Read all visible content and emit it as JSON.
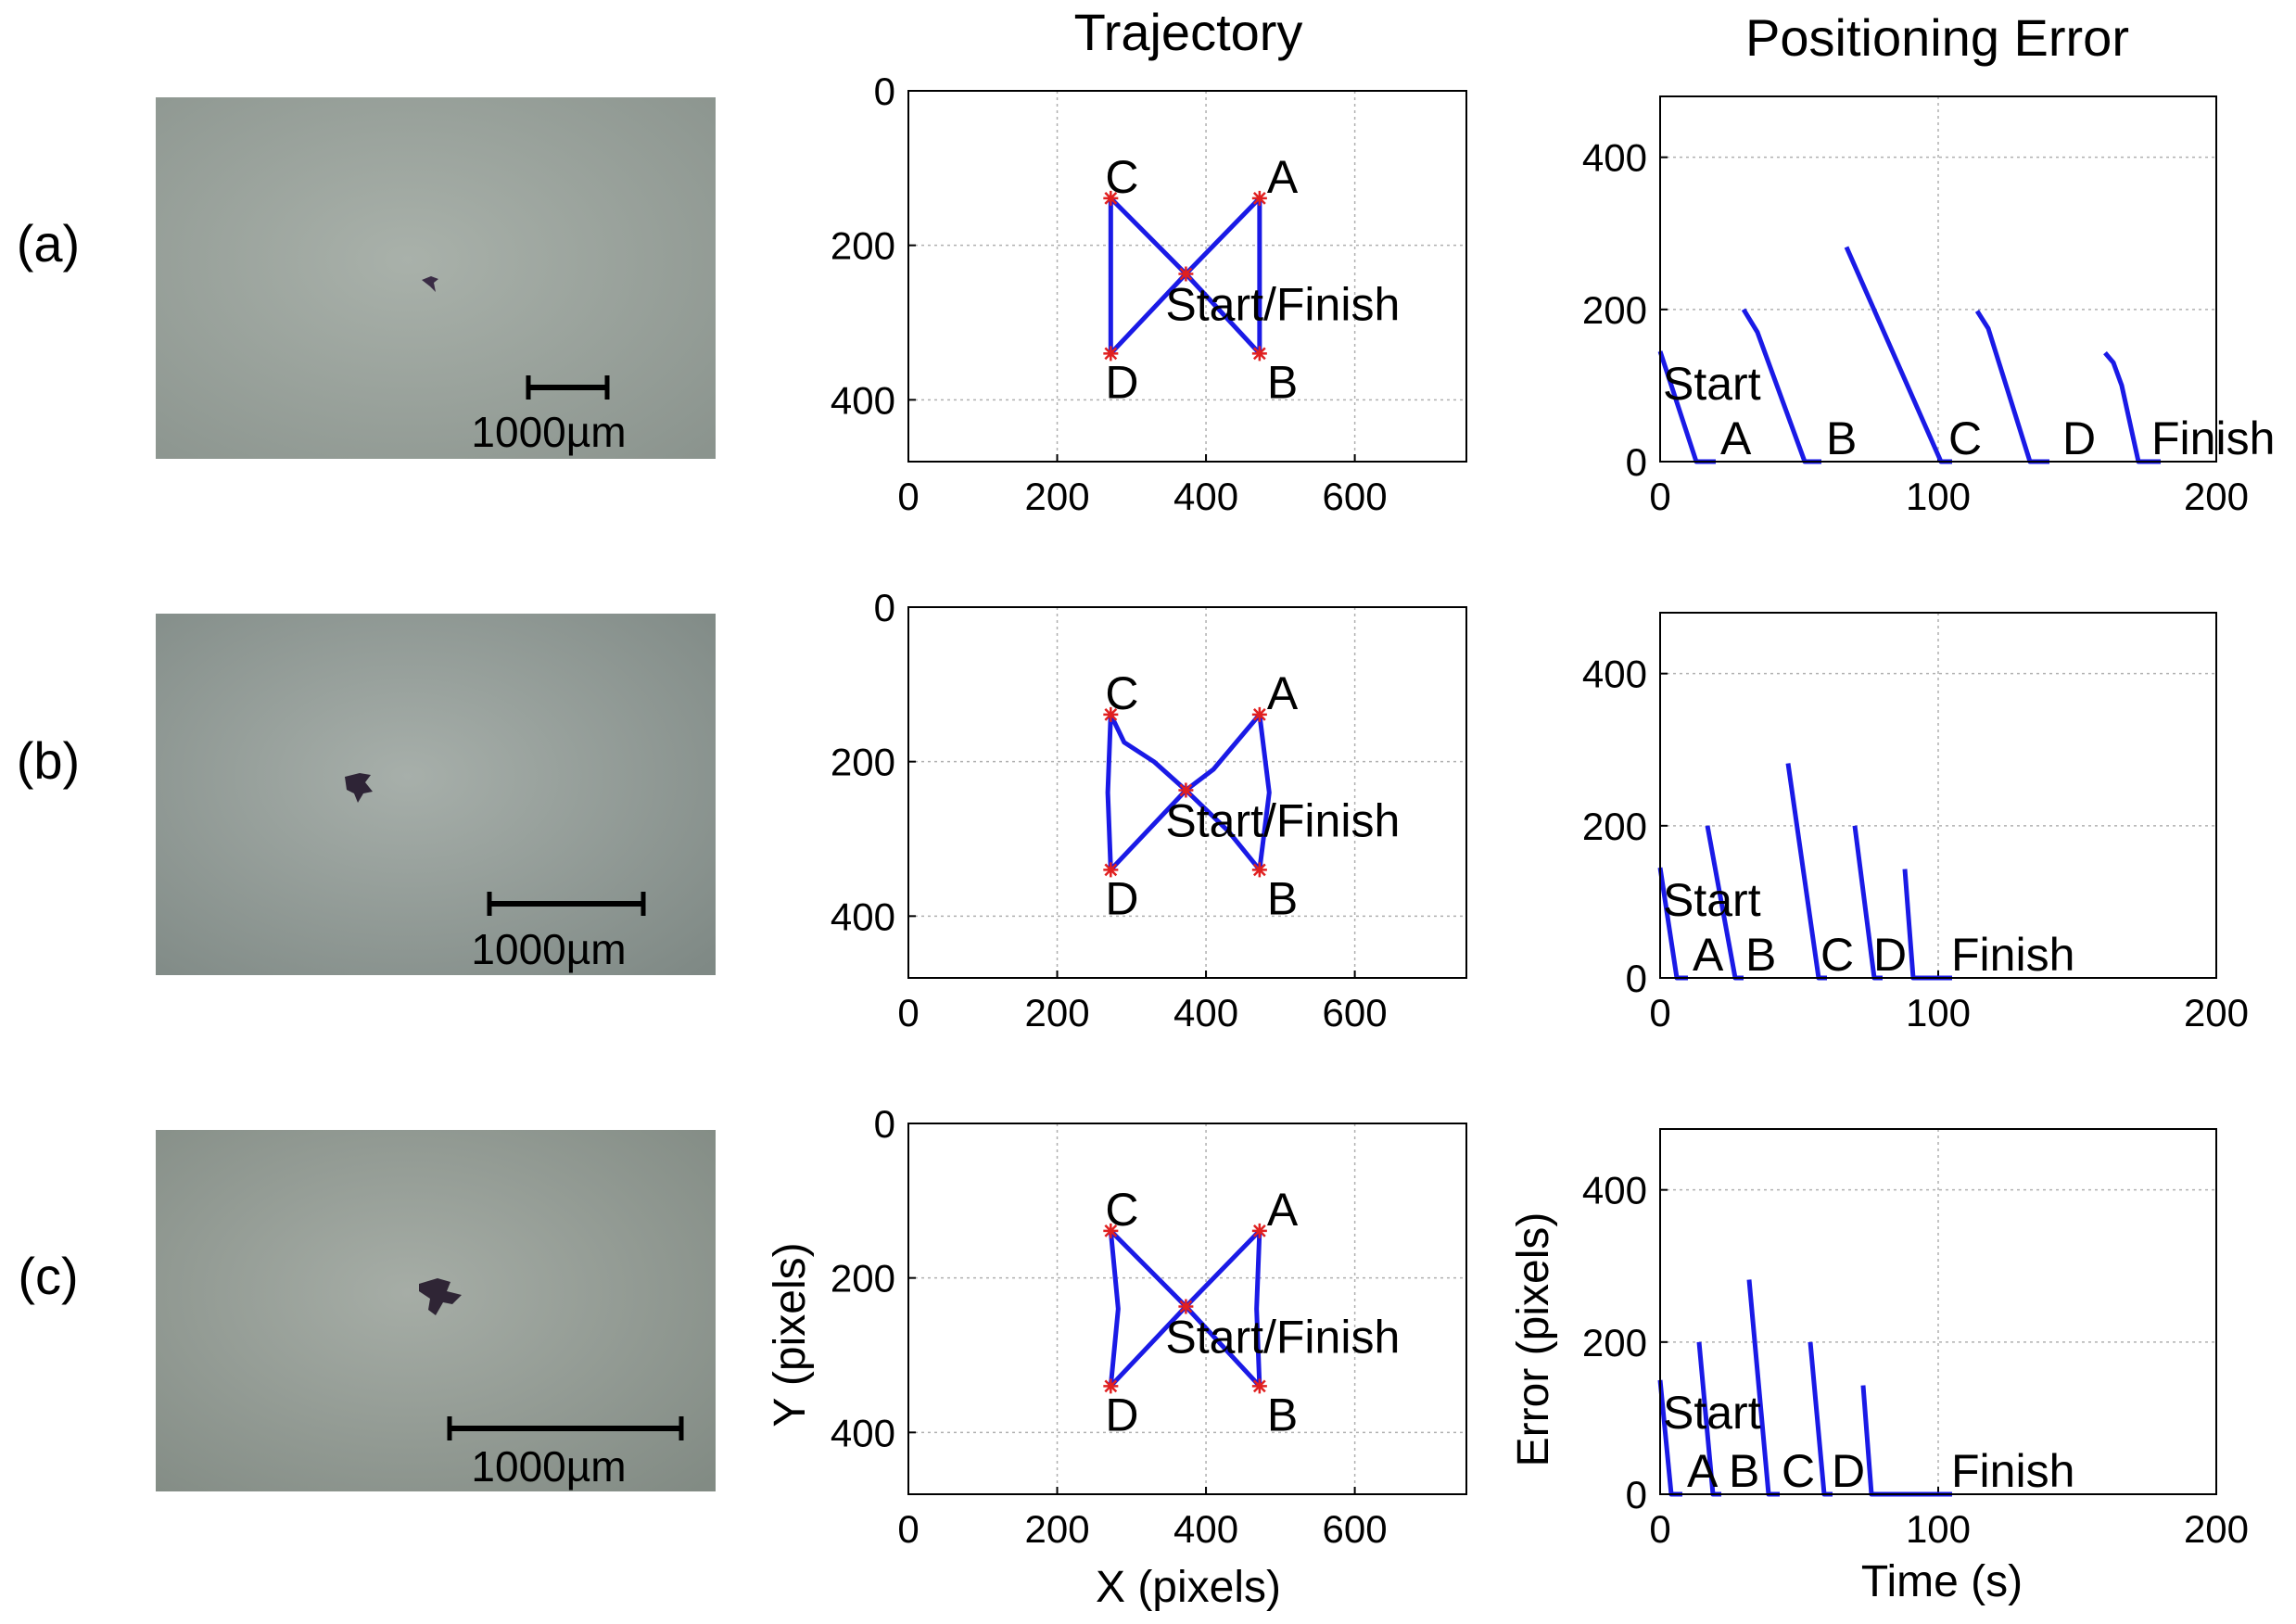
{
  "columns": {
    "trajectory_title": "Trajectory",
    "error_title": "Positioning Error"
  },
  "axis_labels": {
    "traj_x": "X (pixels)",
    "traj_y": "Y (pixels)",
    "err_x": "Time (s)",
    "err_y": "Error (pixels)"
  },
  "rows": [
    {
      "label": "(a)",
      "scale_text": "1000µm",
      "scale_fraction": 0.14
    },
    {
      "label": "(b)",
      "scale_text": "1000µm",
      "scale_fraction": 0.27
    },
    {
      "label": "(c)",
      "scale_text": "1000µm",
      "scale_fraction": 0.4
    }
  ],
  "colors": {
    "trace": "#1a1ae6",
    "waypoint": "#e02020",
    "grid": "#b0b0b0"
  },
  "chart_data": [
    {
      "type": "line",
      "panel": "a-trajectory",
      "xlim": [
        0,
        750
      ],
      "ylim": [
        480,
        0
      ],
      "xticks": [
        "0",
        "200",
        "400",
        "600"
      ],
      "yticks": [
        "0",
        "200",
        "400"
      ],
      "waypoints": {
        "S": [
          373,
          237
        ],
        "A": [
          472,
          139
        ],
        "B": [
          472,
          340
        ],
        "C": [
          272,
          139
        ],
        "D": [
          272,
          340
        ]
      },
      "labels": {
        "A": "A",
        "B": "B",
        "C": "C",
        "D": "D",
        "S": "Start/Finish"
      },
      "path": [
        [
          373,
          237
        ],
        [
          472,
          139
        ],
        [
          472,
          340
        ],
        [
          373,
          237
        ],
        [
          272,
          139
        ],
        [
          272,
          340
        ],
        [
          373,
          237
        ]
      ]
    },
    {
      "type": "line",
      "panel": "b-trajectory",
      "xlim": [
        0,
        750
      ],
      "ylim": [
        480,
        0
      ],
      "xticks": [
        "0",
        "200",
        "400",
        "600"
      ],
      "yticks": [
        "0",
        "200",
        "400"
      ],
      "waypoints": {
        "S": [
          373,
          237
        ],
        "A": [
          472,
          139
        ],
        "B": [
          472,
          340
        ],
        "C": [
          272,
          139
        ],
        "D": [
          272,
          340
        ]
      },
      "labels": {
        "A": "A",
        "B": "B",
        "C": "C",
        "D": "D",
        "S": "Start/Finish"
      },
      "path": [
        [
          373,
          237
        ],
        [
          410,
          210
        ],
        [
          472,
          139
        ],
        [
          485,
          240
        ],
        [
          472,
          340
        ],
        [
          430,
          290
        ],
        [
          373,
          237
        ],
        [
          330,
          200
        ],
        [
          290,
          175
        ],
        [
          272,
          139
        ],
        [
          268,
          240
        ],
        [
          272,
          340
        ],
        [
          373,
          237
        ]
      ]
    },
    {
      "type": "line",
      "panel": "c-trajectory",
      "xlim": [
        0,
        750
      ],
      "ylim": [
        480,
        0
      ],
      "xticks": [
        "0",
        "200",
        "400",
        "600"
      ],
      "yticks": [
        "0",
        "200",
        "400"
      ],
      "waypoints": {
        "S": [
          373,
          237
        ],
        "A": [
          472,
          139
        ],
        "B": [
          472,
          340
        ],
        "C": [
          272,
          139
        ],
        "D": [
          272,
          340
        ]
      },
      "labels": {
        "A": "A",
        "B": "B",
        "C": "C",
        "D": "D",
        "S": "Start/Finish"
      },
      "path": [
        [
          373,
          237
        ],
        [
          472,
          139
        ],
        [
          468,
          240
        ],
        [
          472,
          340
        ],
        [
          373,
          237
        ],
        [
          272,
          139
        ],
        [
          282,
          240
        ],
        [
          272,
          340
        ],
        [
          373,
          237
        ]
      ]
    },
    {
      "type": "line",
      "panel": "a-error",
      "xlim": [
        0,
        200
      ],
      "ylim": [
        0,
        480
      ],
      "xticks": [
        "0",
        "100",
        "200"
      ],
      "yticks": [
        "0",
        "200",
        "400"
      ],
      "segments": [
        [
          [
            0,
            145
          ],
          [
            13,
            0
          ],
          [
            20,
            0
          ]
        ],
        [
          [
            30,
            200
          ],
          [
            35,
            170
          ],
          [
            52,
            0
          ],
          [
            58,
            0
          ]
        ],
        [
          [
            67,
            282
          ],
          [
            101,
            0
          ],
          [
            105,
            0
          ]
        ],
        [
          [
            114,
            198
          ],
          [
            118,
            175
          ],
          [
            133,
            0
          ],
          [
            140,
            0
          ]
        ],
        [
          [
            160,
            143
          ],
          [
            163,
            130
          ],
          [
            166,
            100
          ],
          [
            172,
            0
          ],
          [
            180,
            0
          ]
        ]
      ],
      "annotations": [
        {
          "text": "Start",
          "x": 1,
          "y": 145
        },
        {
          "text": "A",
          "x": 21,
          "y": 0
        },
        {
          "text": "B",
          "x": 59,
          "y": 0
        },
        {
          "text": "C",
          "x": 103,
          "y": 0
        },
        {
          "text": "D",
          "x": 144,
          "y": 0
        },
        {
          "text": "Finish",
          "x": 176,
          "y": 0
        }
      ]
    },
    {
      "type": "line",
      "panel": "b-error",
      "xlim": [
        0,
        200
      ],
      "ylim": [
        0,
        480
      ],
      "xticks": [
        "0",
        "100",
        "200"
      ],
      "yticks": [
        "0",
        "200",
        "400"
      ],
      "segments": [
        [
          [
            0,
            145
          ],
          [
            6,
            0
          ],
          [
            10,
            0
          ]
        ],
        [
          [
            17,
            200
          ],
          [
            27,
            0
          ],
          [
            30,
            0
          ]
        ],
        [
          [
            46,
            282
          ],
          [
            57,
            0
          ],
          [
            60,
            0
          ]
        ],
        [
          [
            70,
            200
          ],
          [
            77,
            0
          ],
          [
            80,
            0
          ]
        ],
        [
          [
            88,
            143
          ],
          [
            91,
            0
          ],
          [
            105,
            0
          ]
        ]
      ],
      "annotations": [
        {
          "text": "Start",
          "x": 1,
          "y": 145
        },
        {
          "text": "A",
          "x": 11,
          "y": 0
        },
        {
          "text": "B",
          "x": 30,
          "y": 0
        },
        {
          "text": "C",
          "x": 57,
          "y": 0
        },
        {
          "text": "D",
          "x": 76,
          "y": 0
        },
        {
          "text": "Finish",
          "x": 104,
          "y": 0
        }
      ]
    },
    {
      "type": "line",
      "panel": "c-error",
      "xlim": [
        0,
        200
      ],
      "ylim": [
        0,
        480
      ],
      "xticks": [
        "0",
        "100",
        "200"
      ],
      "yticks": [
        "0",
        "200",
        "400"
      ],
      "segments": [
        [
          [
            0,
            150
          ],
          [
            4,
            0
          ],
          [
            8,
            0
          ]
        ],
        [
          [
            14,
            200
          ],
          [
            19,
            0
          ],
          [
            22,
            0
          ]
        ],
        [
          [
            32,
            282
          ],
          [
            39,
            0
          ],
          [
            43,
            0
          ]
        ],
        [
          [
            54,
            200
          ],
          [
            59,
            0
          ],
          [
            62,
            0
          ]
        ],
        [
          [
            73,
            143
          ],
          [
            76,
            0
          ],
          [
            105,
            0
          ]
        ]
      ],
      "annotations": [
        {
          "text": "Start",
          "x": 1,
          "y": 150
        },
        {
          "text": "A",
          "x": 9,
          "y": 0
        },
        {
          "text": "B",
          "x": 24,
          "y": 0
        },
        {
          "text": "C",
          "x": 43,
          "y": 0
        },
        {
          "text": "D",
          "x": 61,
          "y": 0
        },
        {
          "text": "Finish",
          "x": 104,
          "y": 0
        }
      ]
    }
  ]
}
